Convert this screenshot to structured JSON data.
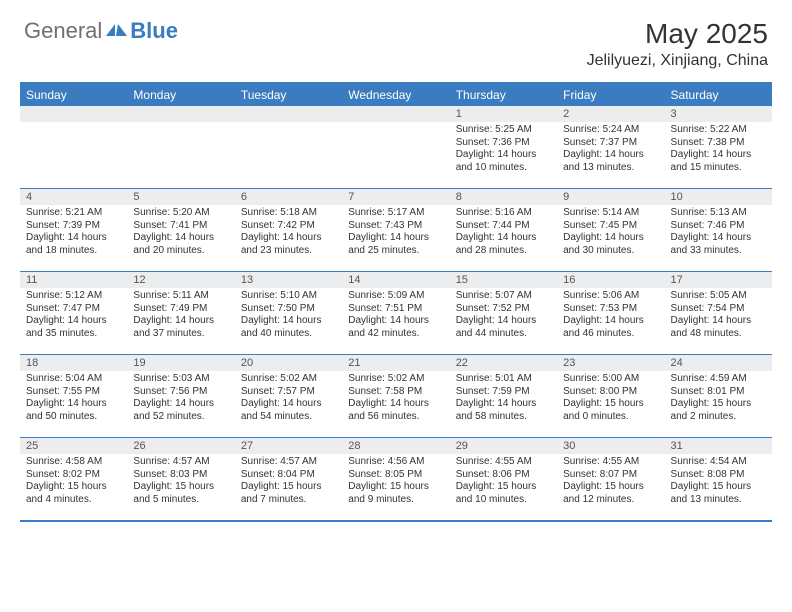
{
  "brand": {
    "general": "General",
    "blue": "Blue"
  },
  "title": "May 2025",
  "location": "Jelilyuezi, Xinjiang, China",
  "day_headers": [
    "Sunday",
    "Monday",
    "Tuesday",
    "Wednesday",
    "Thursday",
    "Friday",
    "Saturday"
  ],
  "colors": {
    "accent": "#3b7bbf",
    "header_bg": "#3b7bbf",
    "daynum_bg": "#ecedef"
  },
  "weeks": [
    [
      {
        "n": "",
        "sr": "",
        "ss": "",
        "dl": ""
      },
      {
        "n": "",
        "sr": "",
        "ss": "",
        "dl": ""
      },
      {
        "n": "",
        "sr": "",
        "ss": "",
        "dl": ""
      },
      {
        "n": "",
        "sr": "",
        "ss": "",
        "dl": ""
      },
      {
        "n": "1",
        "sr": "Sunrise: 5:25 AM",
        "ss": "Sunset: 7:36 PM",
        "dl": "Daylight: 14 hours and 10 minutes."
      },
      {
        "n": "2",
        "sr": "Sunrise: 5:24 AM",
        "ss": "Sunset: 7:37 PM",
        "dl": "Daylight: 14 hours and 13 minutes."
      },
      {
        "n": "3",
        "sr": "Sunrise: 5:22 AM",
        "ss": "Sunset: 7:38 PM",
        "dl": "Daylight: 14 hours and 15 minutes."
      }
    ],
    [
      {
        "n": "4",
        "sr": "Sunrise: 5:21 AM",
        "ss": "Sunset: 7:39 PM",
        "dl": "Daylight: 14 hours and 18 minutes."
      },
      {
        "n": "5",
        "sr": "Sunrise: 5:20 AM",
        "ss": "Sunset: 7:41 PM",
        "dl": "Daylight: 14 hours and 20 minutes."
      },
      {
        "n": "6",
        "sr": "Sunrise: 5:18 AM",
        "ss": "Sunset: 7:42 PM",
        "dl": "Daylight: 14 hours and 23 minutes."
      },
      {
        "n": "7",
        "sr": "Sunrise: 5:17 AM",
        "ss": "Sunset: 7:43 PM",
        "dl": "Daylight: 14 hours and 25 minutes."
      },
      {
        "n": "8",
        "sr": "Sunrise: 5:16 AM",
        "ss": "Sunset: 7:44 PM",
        "dl": "Daylight: 14 hours and 28 minutes."
      },
      {
        "n": "9",
        "sr": "Sunrise: 5:14 AM",
        "ss": "Sunset: 7:45 PM",
        "dl": "Daylight: 14 hours and 30 minutes."
      },
      {
        "n": "10",
        "sr": "Sunrise: 5:13 AM",
        "ss": "Sunset: 7:46 PM",
        "dl": "Daylight: 14 hours and 33 minutes."
      }
    ],
    [
      {
        "n": "11",
        "sr": "Sunrise: 5:12 AM",
        "ss": "Sunset: 7:47 PM",
        "dl": "Daylight: 14 hours and 35 minutes."
      },
      {
        "n": "12",
        "sr": "Sunrise: 5:11 AM",
        "ss": "Sunset: 7:49 PM",
        "dl": "Daylight: 14 hours and 37 minutes."
      },
      {
        "n": "13",
        "sr": "Sunrise: 5:10 AM",
        "ss": "Sunset: 7:50 PM",
        "dl": "Daylight: 14 hours and 40 minutes."
      },
      {
        "n": "14",
        "sr": "Sunrise: 5:09 AM",
        "ss": "Sunset: 7:51 PM",
        "dl": "Daylight: 14 hours and 42 minutes."
      },
      {
        "n": "15",
        "sr": "Sunrise: 5:07 AM",
        "ss": "Sunset: 7:52 PM",
        "dl": "Daylight: 14 hours and 44 minutes."
      },
      {
        "n": "16",
        "sr": "Sunrise: 5:06 AM",
        "ss": "Sunset: 7:53 PM",
        "dl": "Daylight: 14 hours and 46 minutes."
      },
      {
        "n": "17",
        "sr": "Sunrise: 5:05 AM",
        "ss": "Sunset: 7:54 PM",
        "dl": "Daylight: 14 hours and 48 minutes."
      }
    ],
    [
      {
        "n": "18",
        "sr": "Sunrise: 5:04 AM",
        "ss": "Sunset: 7:55 PM",
        "dl": "Daylight: 14 hours and 50 minutes."
      },
      {
        "n": "19",
        "sr": "Sunrise: 5:03 AM",
        "ss": "Sunset: 7:56 PM",
        "dl": "Daylight: 14 hours and 52 minutes."
      },
      {
        "n": "20",
        "sr": "Sunrise: 5:02 AM",
        "ss": "Sunset: 7:57 PM",
        "dl": "Daylight: 14 hours and 54 minutes."
      },
      {
        "n": "21",
        "sr": "Sunrise: 5:02 AM",
        "ss": "Sunset: 7:58 PM",
        "dl": "Daylight: 14 hours and 56 minutes."
      },
      {
        "n": "22",
        "sr": "Sunrise: 5:01 AM",
        "ss": "Sunset: 7:59 PM",
        "dl": "Daylight: 14 hours and 58 minutes."
      },
      {
        "n": "23",
        "sr": "Sunrise: 5:00 AM",
        "ss": "Sunset: 8:00 PM",
        "dl": "Daylight: 15 hours and 0 minutes."
      },
      {
        "n": "24",
        "sr": "Sunrise: 4:59 AM",
        "ss": "Sunset: 8:01 PM",
        "dl": "Daylight: 15 hours and 2 minutes."
      }
    ],
    [
      {
        "n": "25",
        "sr": "Sunrise: 4:58 AM",
        "ss": "Sunset: 8:02 PM",
        "dl": "Daylight: 15 hours and 4 minutes."
      },
      {
        "n": "26",
        "sr": "Sunrise: 4:57 AM",
        "ss": "Sunset: 8:03 PM",
        "dl": "Daylight: 15 hours and 5 minutes."
      },
      {
        "n": "27",
        "sr": "Sunrise: 4:57 AM",
        "ss": "Sunset: 8:04 PM",
        "dl": "Daylight: 15 hours and 7 minutes."
      },
      {
        "n": "28",
        "sr": "Sunrise: 4:56 AM",
        "ss": "Sunset: 8:05 PM",
        "dl": "Daylight: 15 hours and 9 minutes."
      },
      {
        "n": "29",
        "sr": "Sunrise: 4:55 AM",
        "ss": "Sunset: 8:06 PM",
        "dl": "Daylight: 15 hours and 10 minutes."
      },
      {
        "n": "30",
        "sr": "Sunrise: 4:55 AM",
        "ss": "Sunset: 8:07 PM",
        "dl": "Daylight: 15 hours and 12 minutes."
      },
      {
        "n": "31",
        "sr": "Sunrise: 4:54 AM",
        "ss": "Sunset: 8:08 PM",
        "dl": "Daylight: 15 hours and 13 minutes."
      }
    ]
  ]
}
